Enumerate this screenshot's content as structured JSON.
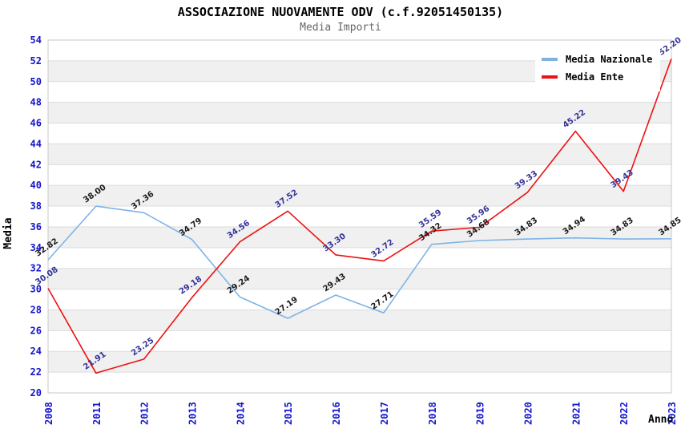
{
  "chart_data": {
    "type": "line",
    "title": "ASSOCIAZIONE NUOVAMENTE ODV (c.f.92051450135)",
    "subtitle": "Media Importi",
    "xlabel": "Anno",
    "ylabel": "Media",
    "ylim": [
      20,
      54
    ],
    "ytick_step": 2,
    "y_ticks": [
      20,
      22,
      24,
      26,
      28,
      30,
      32,
      34,
      36,
      38,
      40,
      42,
      44,
      46,
      48,
      50,
      52,
      54
    ],
    "categories": [
      "2008",
      "2011",
      "2012",
      "2013",
      "2014",
      "2015",
      "2016",
      "2017",
      "2018",
      "2019",
      "2020",
      "2021",
      "2022",
      "2023"
    ],
    "series": [
      {
        "name": "Media Nazionale",
        "color": "#7FB3E6",
        "label_color": "#1A1A1A",
        "values": [
          32.82,
          38.0,
          37.36,
          34.79,
          29.24,
          27.19,
          29.43,
          27.71,
          34.32,
          34.68,
          34.83,
          34.94,
          34.83,
          34.85
        ]
      },
      {
        "name": "Media Ente",
        "color": "#EE1111",
        "label_color": "#333399",
        "values": [
          30.08,
          21.91,
          23.25,
          29.18,
          34.56,
          37.52,
          33.3,
          32.72,
          35.59,
          35.96,
          39.33,
          45.22,
          39.43,
          52.2
        ]
      }
    ],
    "legend_position": "top-right",
    "grid": "horizontal-bands",
    "band_color": "#F0F0F0",
    "gridline_color": "#DCDCDC",
    "frame_color": "#C8C8C8",
    "tick_label_color": "#1414CC"
  },
  "legend": {
    "items": [
      {
        "label": "Media Nazionale",
        "color": "#7FB3E6"
      },
      {
        "label": "Media Ente",
        "color": "#EE1111"
      }
    ]
  }
}
